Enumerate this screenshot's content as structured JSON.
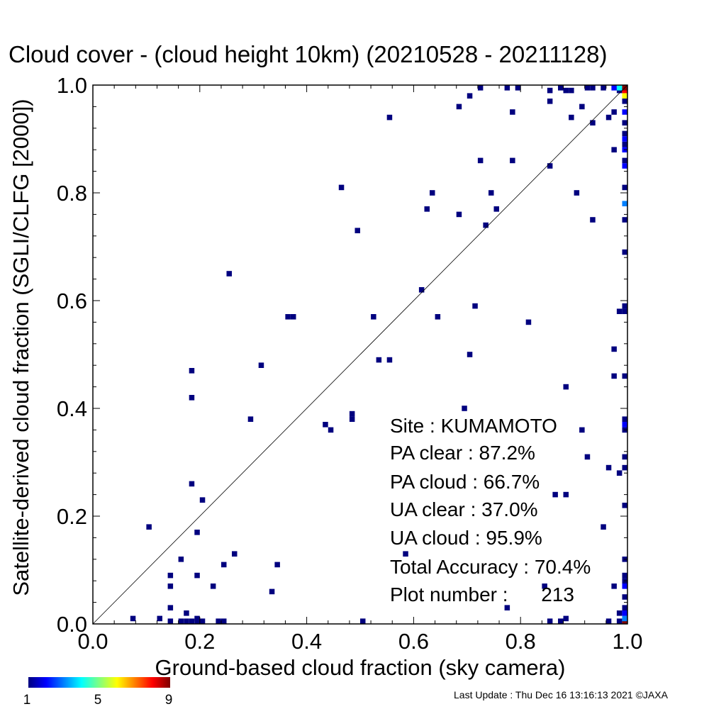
{
  "title": "Cloud cover - (cloud height 10km)  (20210528 - 20211128)",
  "footer": "Last Update : Thu Dec 16 13:16:13 2021  ©JAXA",
  "stats": {
    "site": "Site : KUMAMOTO",
    "pa_clear": "PA clear :  87.2%",
    "pa_cloud": "PA cloud :  66.7%",
    "ua_clear": "UA clear :  37.0%",
    "ua_cloud": "UA cloud :  95.9%",
    "total_accuracy": "Total Accuracy :  70.4%",
    "plot_number": "Plot number :      213"
  },
  "colorbar": {
    "colors": [
      "#00007f",
      "#0000ff",
      "#0080ff",
      "#00ffff",
      "#80ff80",
      "#ffff00",
      "#ff8000",
      "#ff0000",
      "#7f0000"
    ],
    "labels": [
      "1",
      "5",
      "9"
    ]
  },
  "chart_data": {
    "type": "heatmap",
    "title": "Cloud cover - (cloud height 10km)  (20210528 - 20211128)",
    "xlabel": "Ground-based cloud fraction (sky camera)",
    "ylabel": "Satellite-derived cloud fraction (SGLI/CLFG [2000])",
    "xlim": [
      0,
      1
    ],
    "ylim": [
      0,
      1
    ],
    "xticks": [
      "0.0",
      "0.2",
      "0.4",
      "0.6",
      "0.8",
      "1.0"
    ],
    "yticks": [
      "0.0",
      "0.2",
      "0.4",
      "0.6",
      "0.8",
      "1.0"
    ],
    "diagonal_line": true,
    "cell_size": 0.01,
    "count_range": [
      1,
      9
    ],
    "points": [
      [
        0.07,
        0.01,
        1
      ],
      [
        0.12,
        0.01,
        1
      ],
      [
        0.14,
        0.0,
        1
      ],
      [
        0.14,
        0.03,
        1
      ],
      [
        0.14,
        0.07,
        1
      ],
      [
        0.14,
        0.09,
        1
      ],
      [
        0.16,
        0.0,
        1
      ],
      [
        0.17,
        0.0,
        1
      ],
      [
        0.17,
        0.02,
        1
      ],
      [
        0.18,
        0.0,
        1
      ],
      [
        0.19,
        0.0,
        1
      ],
      [
        0.19,
        0.01,
        1
      ],
      [
        0.2,
        0.0,
        1
      ],
      [
        0.23,
        0.0,
        1
      ],
      [
        0.24,
        0.0,
        1
      ],
      [
        0.16,
        0.12,
        1
      ],
      [
        0.19,
        0.09,
        1
      ],
      [
        0.22,
        0.07,
        1
      ],
      [
        0.24,
        0.11,
        1
      ],
      [
        0.26,
        0.13,
        1
      ],
      [
        0.33,
        0.06,
        1
      ],
      [
        0.34,
        0.11,
        1
      ],
      [
        0.5,
        0.0,
        1
      ],
      [
        0.1,
        0.18,
        1
      ],
      [
        0.18,
        0.26,
        1
      ],
      [
        0.19,
        0.17,
        1
      ],
      [
        0.2,
        0.23,
        1
      ],
      [
        0.18,
        0.42,
        1
      ],
      [
        0.18,
        0.47,
        1
      ],
      [
        0.25,
        0.65,
        1
      ],
      [
        0.29,
        0.38,
        1
      ],
      [
        0.31,
        0.48,
        1
      ],
      [
        0.36,
        0.57,
        1
      ],
      [
        0.37,
        0.57,
        1
      ],
      [
        0.43,
        0.37,
        1
      ],
      [
        0.44,
        0.36,
        1
      ],
      [
        0.46,
        0.81,
        1
      ],
      [
        0.48,
        0.38,
        1
      ],
      [
        0.48,
        0.39,
        1
      ],
      [
        0.49,
        0.73,
        1
      ],
      [
        0.52,
        0.57,
        1
      ],
      [
        0.53,
        0.49,
        1
      ],
      [
        0.55,
        0.49,
        1
      ],
      [
        0.55,
        0.94,
        1
      ],
      [
        0.58,
        0.13,
        1
      ],
      [
        0.61,
        0.62,
        1
      ],
      [
        0.62,
        0.77,
        1
      ],
      [
        0.63,
        0.8,
        1
      ],
      [
        0.64,
        0.57,
        1
      ],
      [
        0.68,
        0.76,
        1
      ],
      [
        0.68,
        0.96,
        1
      ],
      [
        0.69,
        0.4,
        1
      ],
      [
        0.7,
        0.5,
        1
      ],
      [
        0.7,
        0.98,
        1
      ],
      [
        0.71,
        0.59,
        1
      ],
      [
        0.72,
        0.86,
        1
      ],
      [
        0.72,
        1.0,
        1
      ],
      [
        0.73,
        0.74,
        1
      ],
      [
        0.74,
        0.8,
        1
      ],
      [
        0.75,
        0.77,
        1
      ],
      [
        0.77,
        0.03,
        1
      ],
      [
        0.78,
        0.86,
        1
      ],
      [
        0.78,
        0.95,
        1
      ],
      [
        0.77,
        1.0,
        1
      ],
      [
        0.79,
        1.0,
        1
      ],
      [
        0.81,
        0.56,
        1
      ],
      [
        0.84,
        0.07,
        1
      ],
      [
        0.85,
        0.0,
        1
      ],
      [
        0.85,
        0.85,
        1
      ],
      [
        0.85,
        0.97,
        1
      ],
      [
        0.85,
        0.99,
        1
      ],
      [
        0.86,
        0.24,
        1
      ],
      [
        0.87,
        0.0,
        1
      ],
      [
        0.87,
        1.0,
        1
      ],
      [
        0.88,
        0.44,
        1
      ],
      [
        0.88,
        0.24,
        1
      ],
      [
        0.88,
        0.01,
        1
      ],
      [
        0.88,
        0.99,
        1
      ],
      [
        0.89,
        0.94,
        1
      ],
      [
        0.89,
        0.99,
        1
      ],
      [
        0.9,
        0.8,
        1
      ],
      [
        0.91,
        0.36,
        1
      ],
      [
        0.91,
        0.96,
        1
      ],
      [
        0.92,
        0.31,
        1
      ],
      [
        0.92,
        1.0,
        1
      ],
      [
        0.93,
        0.75,
        1
      ],
      [
        0.93,
        0.93,
        1
      ],
      [
        0.95,
        0.18,
        1
      ],
      [
        0.96,
        0.0,
        1
      ],
      [
        0.96,
        0.29,
        1
      ],
      [
        0.96,
        0.94,
        1
      ],
      [
        0.97,
        0.88,
        1
      ],
      [
        0.97,
        0.95,
        1
      ],
      [
        0.93,
        1.0,
        1
      ],
      [
        0.95,
        1.0,
        1
      ],
      [
        0.97,
        0.07,
        1
      ],
      [
        0.97,
        0.46,
        1
      ],
      [
        0.97,
        0.51,
        1
      ],
      [
        0.97,
        1.0,
        2
      ],
      [
        0.98,
        0.0,
        1
      ],
      [
        0.98,
        0.02,
        1
      ],
      [
        0.98,
        0.28,
        1
      ],
      [
        0.98,
        0.58,
        1
      ],
      [
        0.98,
        0.99,
        1
      ],
      [
        0.98,
        1.0,
        4
      ],
      [
        0.99,
        0.0,
        2
      ],
      [
        0.99,
        0.02,
        1
      ],
      [
        0.99,
        0.58,
        1
      ],
      [
        0.99,
        1.0,
        6
      ],
      [
        0.99,
        0.99,
        5
      ],
      [
        1.0,
        0.0,
        9
      ],
      [
        1.0,
        0.01,
        3
      ],
      [
        1.0,
        0.02,
        2
      ],
      [
        1.0,
        0.03,
        1
      ],
      [
        1.0,
        0.05,
        1
      ],
      [
        1.0,
        0.07,
        2
      ],
      [
        1.0,
        0.08,
        1
      ],
      [
        1.0,
        0.09,
        1
      ],
      [
        1.0,
        0.12,
        1
      ],
      [
        1.0,
        0.22,
        1
      ],
      [
        1.0,
        0.29,
        1
      ],
      [
        1.0,
        0.31,
        1
      ],
      [
        1.0,
        0.36,
        1
      ],
      [
        1.0,
        0.37,
        2
      ],
      [
        1.0,
        0.38,
        1
      ],
      [
        1.0,
        0.46,
        1
      ],
      [
        1.0,
        0.58,
        1
      ],
      [
        1.0,
        0.59,
        1
      ],
      [
        1.0,
        0.69,
        1
      ],
      [
        1.0,
        0.75,
        1
      ],
      [
        1.0,
        0.78,
        3
      ],
      [
        1.0,
        0.81,
        1
      ],
      [
        1.0,
        0.85,
        2
      ],
      [
        1.0,
        0.86,
        1
      ],
      [
        1.0,
        0.88,
        2
      ],
      [
        1.0,
        0.89,
        1
      ],
      [
        1.0,
        0.9,
        2
      ],
      [
        1.0,
        0.91,
        1
      ],
      [
        1.0,
        0.93,
        1
      ],
      [
        1.0,
        0.95,
        2
      ],
      [
        1.0,
        0.97,
        1
      ],
      [
        1.0,
        0.98,
        6
      ],
      [
        1.0,
        0.99,
        8
      ],
      [
        1.0,
        1.0,
        9
      ]
    ]
  }
}
